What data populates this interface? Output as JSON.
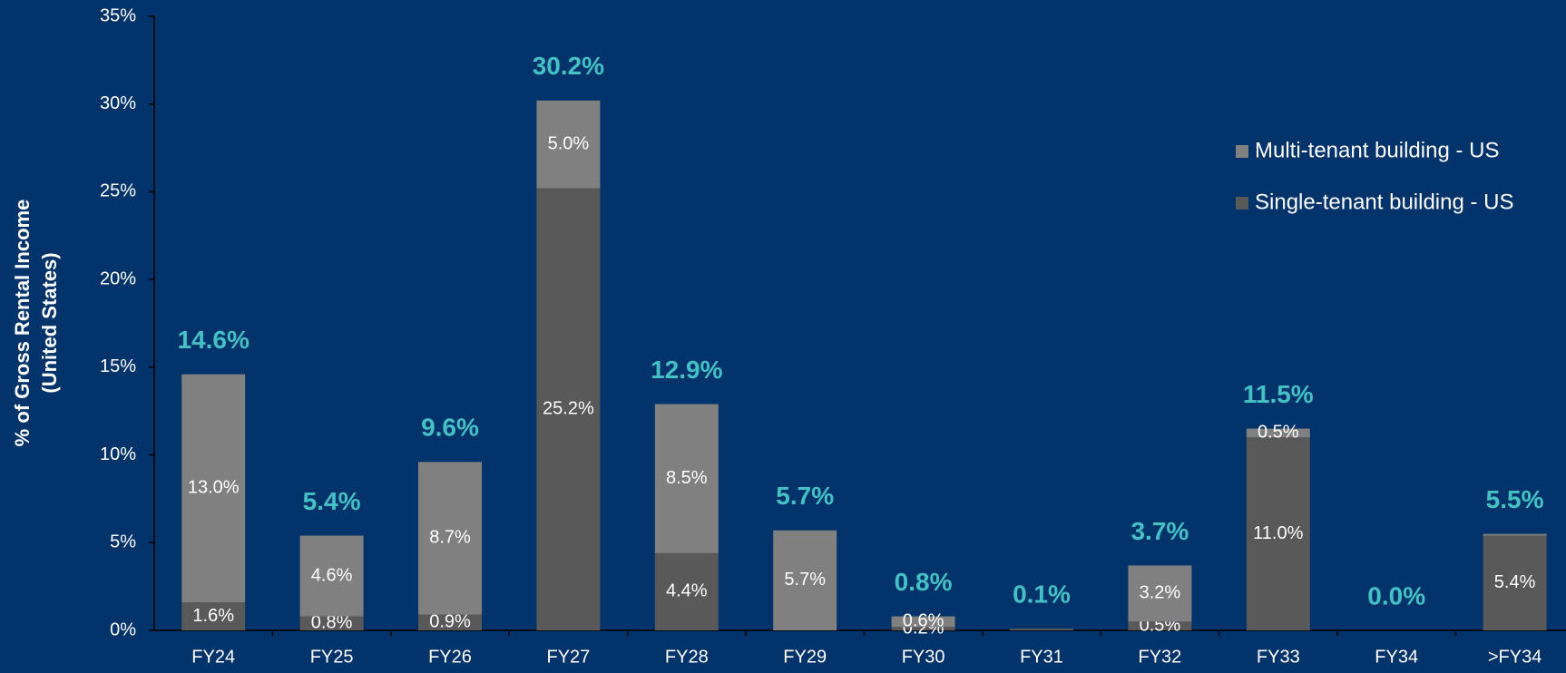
{
  "chart_data": {
    "type": "stacked_bar",
    "ylabel": [
      "% of Gross Rental Income",
      "(United States)"
    ],
    "categories": [
      "FY24",
      "FY25",
      "FY26",
      "FY27",
      "FY28",
      "FY29",
      "FY30",
      "FY31",
      "FY32",
      "FY33",
      "FY34",
      ">FY34"
    ],
    "series": [
      {
        "name": "Single-tenant building - US",
        "color": "#595959",
        "values": [
          1.6,
          0.8,
          0.9,
          25.2,
          4.4,
          0,
          0.2,
          0.1,
          0.5,
          11.0,
          0,
          5.4
        ],
        "value_labels": [
          "1.6%",
          "0.8%",
          "0.9%",
          "25.2%",
          "4.4%",
          null,
          "0.2%",
          null,
          "0.5%",
          "11.0%",
          null,
          "5.4%"
        ]
      },
      {
        "name": "Multi-tenant building - US",
        "color": "#808080",
        "values": [
          13.0,
          4.6,
          8.7,
          5.0,
          8.5,
          5.7,
          0.6,
          0,
          3.2,
          0.5,
          0,
          0.1
        ],
        "value_labels": [
          "13.0%",
          "4.6%",
          "8.7%",
          "5.0%",
          "8.5%",
          "5.7%",
          "0.6%",
          null,
          "3.2%",
          "0.5%",
          null,
          null
        ]
      }
    ],
    "totals": [
      14.6,
      5.4,
      9.6,
      30.2,
      12.9,
      5.7,
      0.8,
      0.1,
      3.7,
      11.5,
      0.0,
      5.5
    ],
    "total_labels": [
      "14.6%",
      "5.4%",
      "9.6%",
      "30.2%",
      "12.9%",
      "5.7%",
      "0.8%",
      "0.1%",
      "3.7%",
      "11.5%",
      "0.0%",
      "5.5%"
    ],
    "total_color": "#45c1c6",
    "ylim": [
      0,
      35
    ],
    "yticks": [
      {
        "value": 0,
        "label": "0%"
      },
      {
        "value": 5,
        "label": "5%"
      },
      {
        "value": 10,
        "label": "10%"
      },
      {
        "value": 15,
        "label": "15%"
      },
      {
        "value": 20,
        "label": "20%"
      },
      {
        "value": 25,
        "label": "25%"
      },
      {
        "value": 30,
        "label": "30%"
      },
      {
        "value": 35,
        "label": "35%"
      }
    ],
    "legend": "right"
  }
}
